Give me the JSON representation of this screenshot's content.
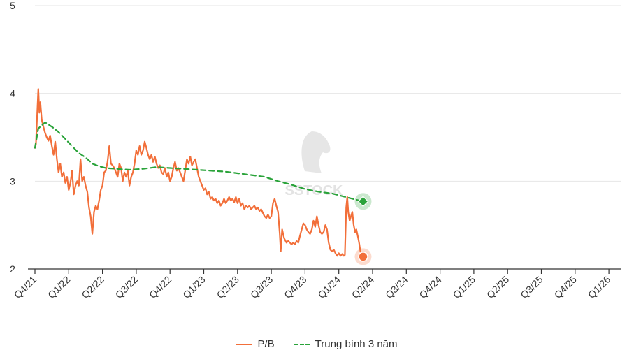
{
  "chart_data": {
    "type": "line",
    "title": "",
    "xlabel": "",
    "ylabel": "",
    "ylim": [
      2,
      5
    ],
    "yticks": [
      "2",
      "3",
      "4",
      "5"
    ],
    "x_ticks": [
      "Q4/21",
      "Q1/22",
      "Q2/22",
      "Q3/22",
      "Q4/22",
      "Q1/23",
      "Q2/23",
      "Q3/23",
      "Q4/23",
      "Q1/24",
      "Q2/24",
      "Q3/24",
      "Q4/24",
      "Q1/25",
      "Q2/25",
      "Q3/25",
      "Q4/25",
      "Q1/26"
    ],
    "grid": "horizontal",
    "legend_position": "bottom-center",
    "watermark": "SSTOCK",
    "series": [
      {
        "name": "P/B",
        "color": "#f26f3a",
        "style": "solid",
        "last_point_marker": "circle",
        "values": [
          [
            0,
            3.38
          ],
          [
            0.03,
            3.42
          ],
          [
            0.07,
            3.8
          ],
          [
            0.1,
            4.05
          ],
          [
            0.13,
            3.78
          ],
          [
            0.16,
            3.9
          ],
          [
            0.2,
            3.7
          ],
          [
            0.25,
            3.62
          ],
          [
            0.3,
            3.55
          ],
          [
            0.35,
            3.5
          ],
          [
            0.4,
            3.46
          ],
          [
            0.45,
            3.52
          ],
          [
            0.5,
            3.4
          ],
          [
            0.55,
            3.3
          ],
          [
            0.6,
            3.45
          ],
          [
            0.65,
            3.25
          ],
          [
            0.7,
            3.1
          ],
          [
            0.75,
            3.2
          ],
          [
            0.8,
            3.05
          ],
          [
            0.85,
            3.1
          ],
          [
            0.9,
            2.98
          ],
          [
            0.95,
            3.05
          ],
          [
            1.0,
            2.9
          ],
          [
            1.05,
            2.98
          ],
          [
            1.1,
            3.12
          ],
          [
            1.15,
            2.85
          ],
          [
            1.2,
            2.95
          ],
          [
            1.25,
            3.0
          ],
          [
            1.3,
            2.95
          ],
          [
            1.35,
            3.25
          ],
          [
            1.4,
            3.0
          ],
          [
            1.45,
            3.05
          ],
          [
            1.5,
            2.95
          ],
          [
            1.55,
            2.88
          ],
          [
            1.6,
            2.7
          ],
          [
            1.65,
            2.6
          ],
          [
            1.7,
            2.4
          ],
          [
            1.75,
            2.65
          ],
          [
            1.8,
            2.72
          ],
          [
            1.85,
            2.68
          ],
          [
            1.9,
            2.78
          ],
          [
            1.95,
            2.9
          ],
          [
            2.0,
            2.95
          ],
          [
            2.05,
            3.1
          ],
          [
            2.1,
            3.12
          ],
          [
            2.15,
            3.22
          ],
          [
            2.2,
            3.4
          ],
          [
            2.25,
            3.2
          ],
          [
            2.3,
            3.18
          ],
          [
            2.35,
            3.15
          ],
          [
            2.4,
            3.1
          ],
          [
            2.45,
            3.05
          ],
          [
            2.5,
            3.2
          ],
          [
            2.55,
            3.15
          ],
          [
            2.6,
            3.0
          ],
          [
            2.65,
            3.1
          ],
          [
            2.7,
            3.05
          ],
          [
            2.75,
            3.12
          ],
          [
            2.8,
            2.95
          ],
          [
            2.85,
            3.05
          ],
          [
            2.9,
            3.1
          ],
          [
            2.95,
            3.2
          ],
          [
            3.0,
            3.35
          ],
          [
            3.05,
            3.3
          ],
          [
            3.1,
            3.4
          ],
          [
            3.15,
            3.3
          ],
          [
            3.2,
            3.35
          ],
          [
            3.25,
            3.45
          ],
          [
            3.3,
            3.38
          ],
          [
            3.35,
            3.3
          ],
          [
            3.4,
            3.25
          ],
          [
            3.45,
            3.3
          ],
          [
            3.5,
            3.22
          ],
          [
            3.55,
            3.28
          ],
          [
            3.6,
            3.2
          ],
          [
            3.65,
            3.15
          ],
          [
            3.7,
            3.18
          ],
          [
            3.75,
            3.1
          ],
          [
            3.8,
            3.08
          ],
          [
            3.85,
            3.15
          ],
          [
            3.9,
            3.05
          ],
          [
            3.95,
            3.1
          ],
          [
            4.0,
            3.0
          ],
          [
            4.05,
            3.05
          ],
          [
            4.1,
            3.15
          ],
          [
            4.15,
            3.22
          ],
          [
            4.2,
            3.12
          ],
          [
            4.25,
            3.15
          ],
          [
            4.3,
            3.1
          ],
          [
            4.35,
            3.05
          ],
          [
            4.4,
            3.0
          ],
          [
            4.45,
            3.12
          ],
          [
            4.5,
            3.25
          ],
          [
            4.55,
            3.2
          ],
          [
            4.6,
            3.28
          ],
          [
            4.65,
            3.18
          ],
          [
            4.7,
            3.22
          ],
          [
            4.75,
            3.25
          ],
          [
            4.8,
            3.15
          ],
          [
            4.85,
            3.05
          ],
          [
            4.9,
            3.0
          ],
          [
            4.95,
            2.95
          ],
          [
            5.0,
            2.9
          ],
          [
            5.05,
            2.92
          ],
          [
            5.1,
            2.85
          ],
          [
            5.15,
            2.88
          ],
          [
            5.2,
            2.8
          ],
          [
            5.25,
            2.82
          ],
          [
            5.3,
            2.78
          ],
          [
            5.35,
            2.8
          ],
          [
            5.4,
            2.75
          ],
          [
            5.45,
            2.78
          ],
          [
            5.5,
            2.72
          ],
          [
            5.55,
            2.75
          ],
          [
            5.6,
            2.8
          ],
          [
            5.65,
            2.75
          ],
          [
            5.7,
            2.78
          ],
          [
            5.75,
            2.82
          ],
          [
            5.8,
            2.78
          ],
          [
            5.85,
            2.8
          ],
          [
            5.9,
            2.76
          ],
          [
            5.95,
            2.82
          ],
          [
            6.0,
            2.75
          ],
          [
            6.05,
            2.8
          ],
          [
            6.1,
            2.72
          ],
          [
            6.15,
            2.75
          ],
          [
            6.2,
            2.68
          ],
          [
            6.25,
            2.72
          ],
          [
            6.3,
            2.7
          ],
          [
            6.35,
            2.72
          ],
          [
            6.4,
            2.68
          ],
          [
            6.45,
            2.7
          ],
          [
            6.5,
            2.72
          ],
          [
            6.55,
            2.68
          ],
          [
            6.6,
            2.7
          ],
          [
            6.65,
            2.66
          ],
          [
            6.7,
            2.68
          ],
          [
            6.75,
            2.64
          ],
          [
            6.8,
            2.6
          ],
          [
            6.85,
            2.58
          ],
          [
            6.9,
            2.62
          ],
          [
            6.95,
            2.58
          ],
          [
            7.0,
            2.6
          ],
          [
            7.05,
            2.75
          ],
          [
            7.1,
            2.8
          ],
          [
            7.15,
            2.72
          ],
          [
            7.2,
            2.65
          ],
          [
            7.25,
            2.4
          ],
          [
            7.28,
            2.2
          ],
          [
            7.32,
            2.45
          ],
          [
            7.38,
            2.35
          ],
          [
            7.45,
            2.3
          ],
          [
            7.5,
            2.32
          ],
          [
            7.55,
            2.3
          ],
          [
            7.6,
            2.28
          ],
          [
            7.65,
            2.3
          ],
          [
            7.7,
            2.28
          ],
          [
            7.75,
            2.32
          ],
          [
            7.8,
            2.3
          ],
          [
            7.85,
            2.38
          ],
          [
            7.9,
            2.45
          ],
          [
            7.95,
            2.52
          ],
          [
            8.0,
            2.5
          ],
          [
            8.05,
            2.45
          ],
          [
            8.1,
            2.42
          ],
          [
            8.15,
            2.4
          ],
          [
            8.2,
            2.45
          ],
          [
            8.25,
            2.55
          ],
          [
            8.3,
            2.48
          ],
          [
            8.35,
            2.6
          ],
          [
            8.4,
            2.5
          ],
          [
            8.45,
            2.42
          ],
          [
            8.5,
            2.4
          ],
          [
            8.55,
            2.42
          ],
          [
            8.6,
            2.5
          ],
          [
            8.65,
            2.45
          ],
          [
            8.7,
            2.3
          ],
          [
            8.75,
            2.22
          ],
          [
            8.8,
            2.2
          ],
          [
            8.85,
            2.22
          ],
          [
            8.9,
            2.18
          ],
          [
            8.95,
            2.15
          ],
          [
            9.0,
            2.18
          ],
          [
            9.05,
            2.15
          ],
          [
            9.1,
            2.17
          ],
          [
            9.15,
            2.15
          ],
          [
            9.18,
            2.16
          ],
          [
            9.22,
            2.7
          ],
          [
            9.25,
            2.82
          ],
          [
            9.28,
            2.65
          ],
          [
            9.32,
            2.55
          ],
          [
            9.36,
            2.6
          ],
          [
            9.4,
            2.65
          ],
          [
            9.44,
            2.5
          ],
          [
            9.48,
            2.42
          ],
          [
            9.52,
            2.45
          ],
          [
            9.56,
            2.38
          ],
          [
            9.6,
            2.3
          ],
          [
            9.64,
            2.2
          ],
          [
            9.68,
            2.18
          ],
          [
            9.72,
            2.14
          ]
        ]
      },
      {
        "name": "Trung bình 3 năm",
        "color": "#2aa33a",
        "style": "dashed",
        "last_point_marker": "diamond",
        "values": [
          [
            0,
            3.38
          ],
          [
            0.1,
            3.6
          ],
          [
            0.3,
            3.67
          ],
          [
            0.5,
            3.62
          ],
          [
            0.7,
            3.56
          ],
          [
            0.9,
            3.48
          ],
          [
            1.1,
            3.4
          ],
          [
            1.3,
            3.32
          ],
          [
            1.5,
            3.27
          ],
          [
            1.7,
            3.2
          ],
          [
            1.9,
            3.17
          ],
          [
            2.1,
            3.15
          ],
          [
            2.4,
            3.14
          ],
          [
            2.8,
            3.13
          ],
          [
            3.2,
            3.14
          ],
          [
            3.6,
            3.16
          ],
          [
            4.0,
            3.15
          ],
          [
            4.4,
            3.14
          ],
          [
            4.8,
            3.13
          ],
          [
            5.2,
            3.12
          ],
          [
            5.6,
            3.11
          ],
          [
            6.0,
            3.09
          ],
          [
            6.4,
            3.07
          ],
          [
            6.8,
            3.05
          ],
          [
            7.2,
            3.0
          ],
          [
            7.6,
            2.96
          ],
          [
            8.0,
            2.91
          ],
          [
            8.4,
            2.88
          ],
          [
            8.8,
            2.86
          ],
          [
            9.2,
            2.82
          ],
          [
            9.5,
            2.79
          ],
          [
            9.72,
            2.77
          ]
        ]
      }
    ]
  }
}
